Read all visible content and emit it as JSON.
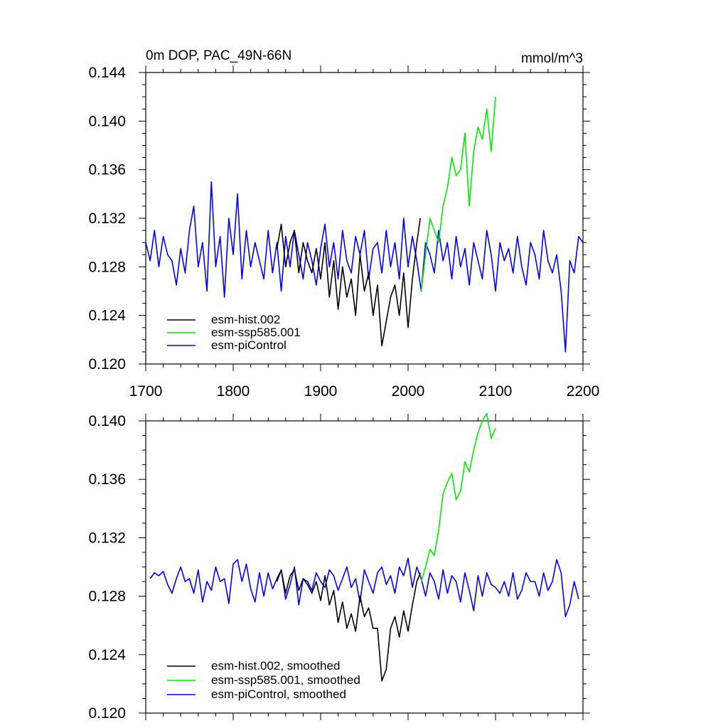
{
  "chart_data": [
    {
      "type": "line",
      "title": "0m DOP, PAC_49N-66N",
      "units_label": "mmol/m^3",
      "xlim": [
        1700,
        2200
      ],
      "ylim": [
        0.12,
        0.144
      ],
      "x_ticks": [
        1700,
        1800,
        1900,
        2000,
        2100,
        2200
      ],
      "x_tick_labels": [
        "1700",
        "1800",
        "1900",
        "2000",
        "2100",
        "2200"
      ],
      "y_ticks": [
        0.12,
        0.124,
        0.128,
        0.132,
        0.136,
        0.14,
        0.144
      ],
      "y_tick_labels": [
        "0.120",
        "0.124",
        "0.128",
        "0.132",
        "0.136",
        "0.140",
        "0.144"
      ],
      "legend_position": "bottom-left",
      "series": [
        {
          "name": "esm-piControl",
          "color": "#0000ff",
          "x": [
            1700,
            1705,
            1710,
            1715,
            1720,
            1725,
            1730,
            1735,
            1740,
            1745,
            1750,
            1755,
            1760,
            1765,
            1770,
            1775,
            1780,
            1785,
            1790,
            1795,
            1800,
            1805,
            1810,
            1815,
            1820,
            1825,
            1830,
            1835,
            1840,
            1845,
            1850,
            1855,
            1860,
            1865,
            1870,
            1875,
            1880,
            1885,
            1890,
            1895,
            1900,
            1905,
            1910,
            1915,
            1920,
            1925,
            1930,
            1935,
            1940,
            1945,
            1950,
            1955,
            1960,
            1965,
            1970,
            1975,
            1980,
            1985,
            1990,
            1995,
            2000,
            2005,
            2010,
            2015,
            2020,
            2025,
            2030,
            2035,
            2040,
            2045,
            2050,
            2055,
            2060,
            2065,
            2070,
            2075,
            2080,
            2085,
            2090,
            2095,
            2100,
            2105,
            2110,
            2115,
            2120,
            2125,
            2130,
            2135,
            2140,
            2145,
            2150,
            2155,
            2160,
            2165,
            2170,
            2175,
            2180,
            2185,
            2190,
            2195,
            2200
          ],
          "values": [
            0.13,
            0.1285,
            0.131,
            0.128,
            0.1305,
            0.129,
            0.1285,
            0.1265,
            0.1295,
            0.1275,
            0.131,
            0.133,
            0.128,
            0.13,
            0.126,
            0.135,
            0.128,
            0.1305,
            0.1255,
            0.132,
            0.129,
            0.134,
            0.127,
            0.131,
            0.128,
            0.13,
            0.1285,
            0.127,
            0.131,
            0.1275,
            0.13,
            0.126,
            0.1305,
            0.128,
            0.131,
            0.129,
            0.127,
            0.13,
            0.1285,
            0.1265,
            0.1295,
            0.1315,
            0.128,
            0.13,
            0.127,
            0.131,
            0.1285,
            0.1275,
            0.1305,
            0.129,
            0.131,
            0.127,
            0.1295,
            0.13,
            0.1275,
            0.131,
            0.128,
            0.13,
            0.127,
            0.132,
            0.128,
            0.1305,
            0.1285,
            0.126,
            0.13,
            0.129,
            0.1275,
            0.131,
            0.1285,
            0.13,
            0.127,
            0.1305,
            0.128,
            0.1295,
            0.1265,
            0.13,
            0.1285,
            0.127,
            0.131,
            0.129,
            0.126,
            0.13,
            0.1285,
            0.1295,
            0.1275,
            0.1305,
            0.128,
            0.1265,
            0.13,
            0.129,
            0.127,
            0.131,
            0.1285,
            0.1275,
            0.129,
            0.126,
            0.121,
            0.1285,
            0.1275,
            0.1305,
            0.13
          ]
        },
        {
          "name": "esm-hist.002",
          "color": "#000000",
          "x": [
            1850,
            1855,
            1860,
            1865,
            1870,
            1875,
            1880,
            1885,
            1890,
            1895,
            1900,
            1905,
            1910,
            1915,
            1920,
            1925,
            1930,
            1935,
            1940,
            1945,
            1950,
            1955,
            1960,
            1965,
            1970,
            1975,
            1980,
            1985,
            1990,
            1995,
            2000,
            2005,
            2010,
            2014
          ],
          "values": [
            0.1295,
            0.1315,
            0.128,
            0.13,
            0.131,
            0.1275,
            0.13,
            0.1285,
            0.1275,
            0.1295,
            0.127,
            0.13,
            0.1255,
            0.1285,
            0.1245,
            0.128,
            0.1255,
            0.127,
            0.124,
            0.129,
            0.126,
            0.1275,
            0.124,
            0.1265,
            0.1215,
            0.1235,
            0.1255,
            0.1265,
            0.124,
            0.1275,
            0.123,
            0.127,
            0.13,
            0.132
          ]
        },
        {
          "name": "esm-ssp585.001",
          "color": "#00ee00",
          "x": [
            2015,
            2020,
            2025,
            2030,
            2035,
            2040,
            2045,
            2050,
            2055,
            2060,
            2065,
            2070,
            2075,
            2080,
            2085,
            2090,
            2095,
            2100
          ],
          "values": [
            0.126,
            0.129,
            0.132,
            0.131,
            0.13,
            0.133,
            0.1345,
            0.137,
            0.1355,
            0.136,
            0.139,
            0.133,
            0.1375,
            0.1395,
            0.1385,
            0.141,
            0.1375,
            0.142
          ]
        }
      ]
    },
    {
      "type": "line",
      "title": "",
      "xlim": [
        1700,
        2200
      ],
      "ylim": [
        0.12,
        0.14
      ],
      "x_ticks": [
        1700,
        1800,
        1900,
        2000,
        2100,
        2200
      ],
      "y_ticks": [
        0.12,
        0.124,
        0.128,
        0.132,
        0.136,
        0.14
      ],
      "y_tick_labels": [
        "0.120",
        "0.124",
        "0.128",
        "0.132",
        "0.136",
        "0.140"
      ],
      "legend_position": "bottom-left",
      "series": [
        {
          "name": "esm-piControl, smoothed",
          "color": "#0000ff",
          "x": [
            1705,
            1710,
            1715,
            1720,
            1725,
            1730,
            1735,
            1740,
            1745,
            1750,
            1755,
            1760,
            1765,
            1770,
            1775,
            1780,
            1785,
            1790,
            1795,
            1800,
            1805,
            1810,
            1815,
            1820,
            1825,
            1830,
            1835,
            1840,
            1845,
            1850,
            1855,
            1860,
            1865,
            1870,
            1875,
            1880,
            1885,
            1890,
            1895,
            1900,
            1905,
            1910,
            1915,
            1920,
            1925,
            1930,
            1935,
            1940,
            1945,
            1950,
            1955,
            1960,
            1965,
            1970,
            1975,
            1980,
            1985,
            1990,
            1995,
            2000,
            2005,
            2010,
            2015,
            2020,
            2025,
            2030,
            2035,
            2040,
            2045,
            2050,
            2055,
            2060,
            2065,
            2070,
            2075,
            2080,
            2085,
            2090,
            2095,
            2100,
            2105,
            2110,
            2115,
            2120,
            2125,
            2130,
            2135,
            2140,
            2145,
            2150,
            2155,
            2160,
            2165,
            2170,
            2175,
            2180,
            2185,
            2190,
            2195
          ],
          "values": [
            0.1292,
            0.1296,
            0.1294,
            0.1297,
            0.1288,
            0.1282,
            0.1292,
            0.13,
            0.129,
            0.1292,
            0.1282,
            0.1298,
            0.1276,
            0.129,
            0.1284,
            0.13,
            0.129,
            0.1292,
            0.1275,
            0.1302,
            0.1305,
            0.129,
            0.1302,
            0.1285,
            0.1276,
            0.1296,
            0.128,
            0.1296,
            0.1285,
            0.1292,
            0.1298,
            0.1278,
            0.1288,
            0.13,
            0.1274,
            0.1292,
            0.129,
            0.1284,
            0.1296,
            0.129,
            0.1286,
            0.1298,
            0.1294,
            0.1284,
            0.1292,
            0.13,
            0.1286,
            0.1292,
            0.1276,
            0.1298,
            0.129,
            0.1282,
            0.1296,
            0.13,
            0.1288,
            0.1294,
            0.1282,
            0.13,
            0.1294,
            0.1306,
            0.1286,
            0.13,
            0.1292,
            0.128,
            0.1296,
            0.129,
            0.1278,
            0.1298,
            0.1282,
            0.1294,
            0.129,
            0.1276,
            0.1296,
            0.1284,
            0.127,
            0.1294,
            0.128,
            0.1296,
            0.1288,
            0.1286,
            0.1282,
            0.129,
            0.128,
            0.1296,
            0.1278,
            0.1284,
            0.1296,
            0.129,
            0.129,
            0.128,
            0.1296,
            0.1284,
            0.129,
            0.1305,
            0.1296,
            0.1266,
            0.1274,
            0.129,
            0.1278
          ]
        },
        {
          "name": "esm-hist.002, smoothed",
          "color": "#000000",
          "x": [
            1850,
            1855,
            1860,
            1865,
            1870,
            1875,
            1880,
            1885,
            1890,
            1895,
            1900,
            1905,
            1910,
            1915,
            1920,
            1925,
            1930,
            1935,
            1940,
            1945,
            1950,
            1955,
            1960,
            1965,
            1970,
            1975,
            1980,
            1985,
            1990,
            1995,
            2000,
            2005,
            2010,
            2014
          ],
          "values": [
            0.129,
            0.1298,
            0.1282,
            0.1294,
            0.1298,
            0.1284,
            0.1292,
            0.1288,
            0.1282,
            0.129,
            0.1277,
            0.1294,
            0.1274,
            0.1284,
            0.1262,
            0.1276,
            0.1258,
            0.1268,
            0.1256,
            0.128,
            0.1266,
            0.1272,
            0.1258,
            0.1258,
            0.1222,
            0.123,
            0.1258,
            0.1266,
            0.1252,
            0.127,
            0.1256,
            0.1274,
            0.129,
            0.1296
          ]
        },
        {
          "name": "esm-ssp585.001, smoothed",
          "color": "#00ee00",
          "x": [
            2015,
            2020,
            2025,
            2030,
            2035,
            2040,
            2045,
            2050,
            2055,
            2060,
            2065,
            2070,
            2075,
            2080,
            2085,
            2090,
            2095,
            2100
          ],
          "values": [
            0.129,
            0.13,
            0.1312,
            0.1308,
            0.1325,
            0.135,
            0.1358,
            0.1364,
            0.1346,
            0.1352,
            0.1372,
            0.1365,
            0.138,
            0.1392,
            0.14,
            0.1405,
            0.1388,
            0.1395
          ]
        }
      ]
    }
  ]
}
